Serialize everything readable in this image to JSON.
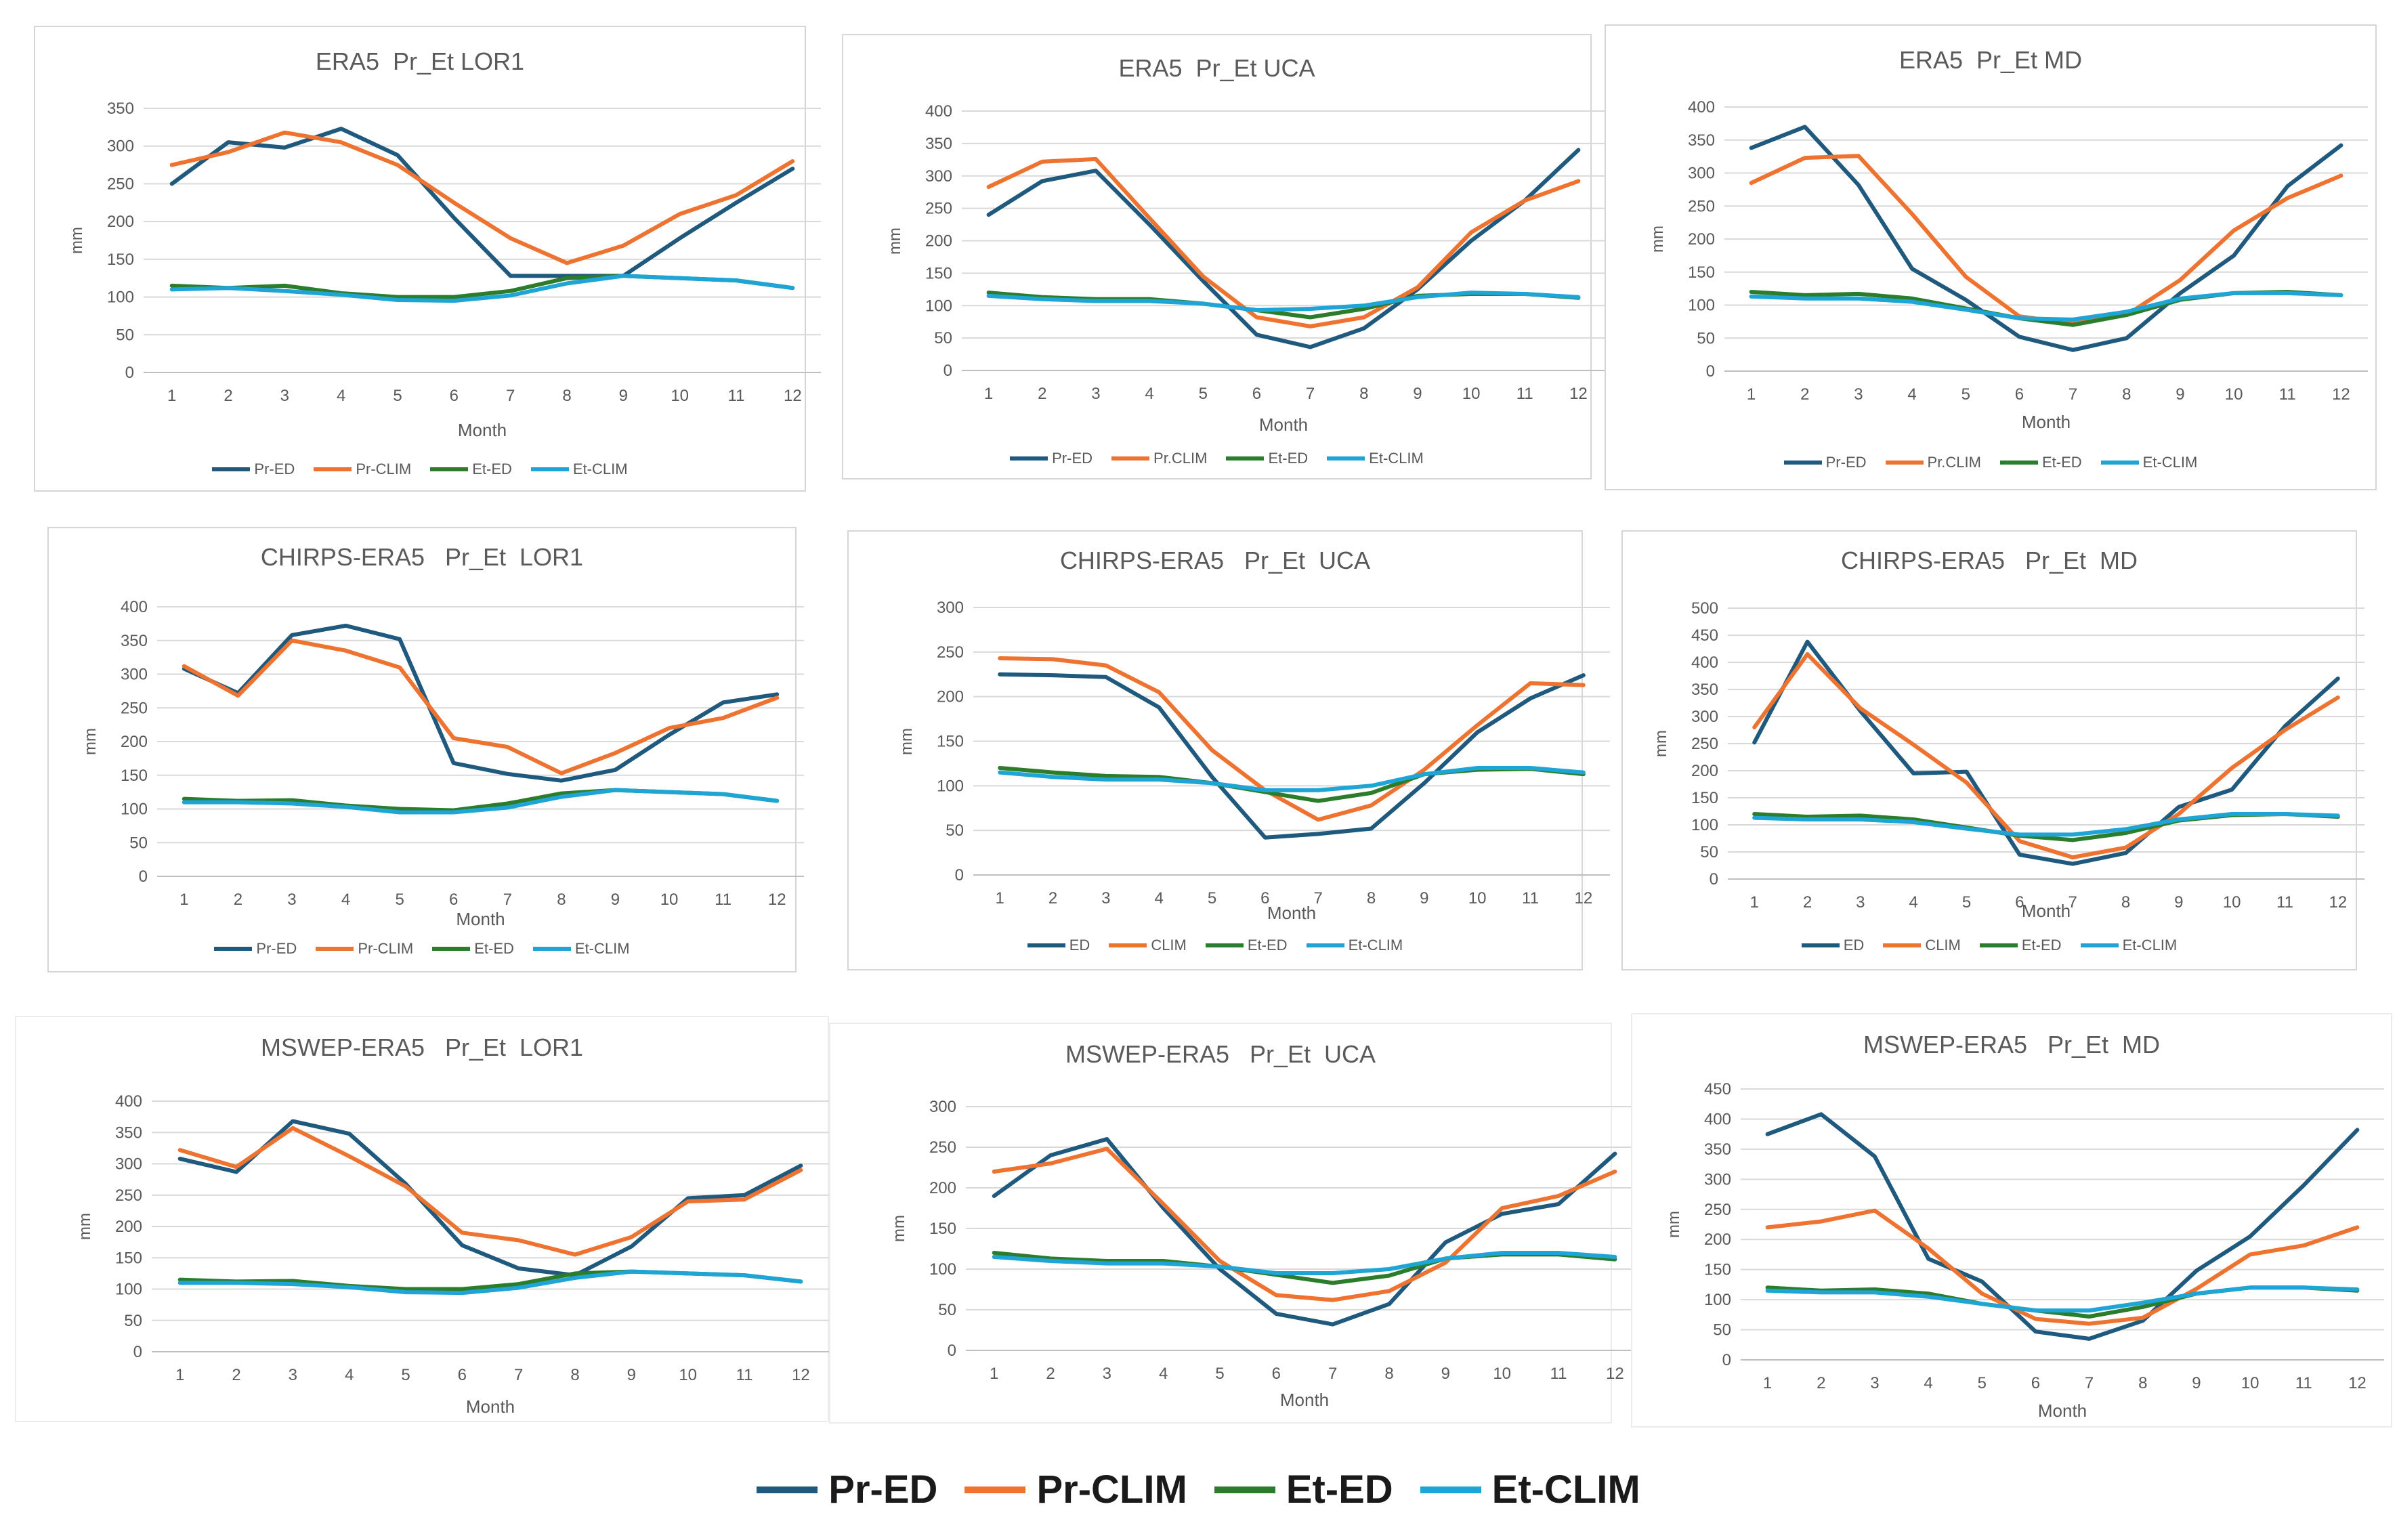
{
  "colors": {
    "pr_ed": "#1f5a7e",
    "pr_clim": "#ee7330",
    "et_ed": "#2b7d2b",
    "et_clim": "#1ea5d6"
  },
  "bottom_legend": [
    "Pr-ED",
    "Pr-CLIM",
    "Et-ED",
    "Et-CLIM"
  ],
  "chart_data": [
    {
      "type": "line",
      "title": "ERA5  Pr_Et LOR1",
      "xlabel": "Month",
      "ylabel": "mm",
      "categories": [
        1,
        2,
        3,
        4,
        5,
        6,
        7,
        8,
        9,
        10,
        11,
        12
      ],
      "ylim": [
        0,
        350
      ],
      "yticks": [
        0,
        50,
        100,
        150,
        200,
        250,
        300,
        350
      ],
      "legend": [
        "Pr-ED",
        "Pr-CLIM",
        "Et-ED",
        "Et-CLIM"
      ],
      "series": [
        {
          "name": "Pr-ED",
          "values": [
            250,
            305,
            298,
            323,
            288,
            205,
            128,
            128,
            128,
            178,
            225,
            270
          ]
        },
        {
          "name": "Pr-CLIM",
          "values": [
            275,
            292,
            318,
            305,
            275,
            225,
            178,
            145,
            168,
            210,
            235,
            280
          ]
        },
        {
          "name": "Et-ED",
          "values": [
            115,
            112,
            115,
            105,
            100,
            100,
            108,
            125,
            128,
            125,
            122,
            112
          ]
        },
        {
          "name": "Et-CLIM",
          "values": [
            110,
            112,
            108,
            103,
            96,
            95,
            102,
            118,
            128,
            125,
            122,
            112
          ]
        }
      ]
    },
    {
      "type": "line",
      "title": "ERA5  Pr_Et UCA",
      "xlabel": "Month",
      "ylabel": "mm",
      "categories": [
        1,
        2,
        3,
        4,
        5,
        6,
        7,
        8,
        9,
        10,
        11,
        12
      ],
      "ylim": [
        0,
        400
      ],
      "yticks": [
        0,
        50,
        100,
        150,
        200,
        250,
        300,
        350,
        400
      ],
      "legend": [
        "Pr-ED",
        "Pr.CLIM",
        "Et-ED",
        "Et-CLIM"
      ],
      "series": [
        {
          "name": "Pr-ED",
          "values": [
            240,
            292,
            308,
            225,
            138,
            55,
            36,
            65,
            125,
            200,
            262,
            340
          ]
        },
        {
          "name": "Pr-CLIM",
          "values": [
            283,
            322,
            326,
            235,
            145,
            82,
            68,
            82,
            128,
            213,
            262,
            292
          ]
        },
        {
          "name": "Et-ED",
          "values": [
            120,
            113,
            110,
            110,
            103,
            93,
            82,
            95,
            115,
            118,
            118,
            112
          ]
        },
        {
          "name": "Et-CLIM",
          "values": [
            115,
            110,
            107,
            107,
            103,
            93,
            95,
            100,
            113,
            120,
            118,
            113
          ]
        }
      ]
    },
    {
      "type": "line",
      "title": "ERA5  Pr_Et MD",
      "xlabel": "Month",
      "ylabel": "mm",
      "categories": [
        1,
        2,
        3,
        4,
        5,
        6,
        7,
        8,
        9,
        10,
        11,
        12
      ],
      "ylim": [
        0,
        400
      ],
      "yticks": [
        0,
        50,
        100,
        150,
        200,
        250,
        300,
        350,
        400
      ],
      "legend": [
        "Pr-ED",
        "Pr.CLIM",
        "Et-ED",
        "Et-CLIM"
      ],
      "series": [
        {
          "name": "Pr-ED",
          "values": [
            338,
            370,
            282,
            155,
            108,
            52,
            32,
            50,
            118,
            175,
            280,
            342
          ]
        },
        {
          "name": "Pr-CLIM",
          "values": [
            285,
            323,
            326,
            238,
            143,
            83,
            72,
            85,
            138,
            213,
            262,
            296
          ]
        },
        {
          "name": "Et-ED",
          "values": [
            120,
            115,
            117,
            110,
            95,
            80,
            70,
            85,
            108,
            118,
            120,
            115
          ]
        },
        {
          "name": "Et-CLIM",
          "values": [
            113,
            110,
            110,
            105,
            93,
            80,
            78,
            90,
            110,
            118,
            118,
            115
          ]
        }
      ]
    },
    {
      "type": "line",
      "title": "CHIRPS-ERA5   Pr_Et  LOR1",
      "xlabel": "Month",
      "ylabel": "mm",
      "categories": [
        1,
        2,
        3,
        4,
        5,
        6,
        7,
        8,
        9,
        10,
        11,
        12
      ],
      "ylim": [
        0,
        400
      ],
      "yticks": [
        0,
        50,
        100,
        150,
        200,
        250,
        300,
        350,
        400
      ],
      "legend": [
        "Pr-ED",
        "Pr-CLIM",
        "Et-ED",
        "Et-CLIM"
      ],
      "series": [
        {
          "name": "Pr-ED",
          "values": [
            308,
            272,
            358,
            372,
            352,
            168,
            152,
            142,
            158,
            210,
            258,
            270
          ]
        },
        {
          "name": "Pr-CLIM",
          "values": [
            312,
            268,
            350,
            335,
            310,
            205,
            192,
            153,
            183,
            220,
            235,
            265
          ]
        },
        {
          "name": "Et-ED",
          "values": [
            115,
            112,
            113,
            105,
            100,
            98,
            108,
            123,
            128,
            125,
            122,
            112
          ]
        },
        {
          "name": "Et-CLIM",
          "values": [
            110,
            110,
            108,
            103,
            95,
            95,
            102,
            118,
            128,
            125,
            122,
            112
          ]
        }
      ]
    },
    {
      "type": "line",
      "title": "CHIRPS-ERA5   Pr_Et  UCA",
      "xlabel": "Month",
      "ylabel": "mm",
      "categories": [
        1,
        2,
        3,
        4,
        5,
        6,
        7,
        8,
        9,
        10,
        11,
        12
      ],
      "ylim": [
        0,
        300
      ],
      "yticks": [
        0,
        50,
        100,
        150,
        200,
        250,
        300
      ],
      "legend": [
        "ED",
        "CLIM",
        "Et-ED",
        "Et-CLIM"
      ],
      "series": [
        {
          "name": "ED",
          "values": [
            225,
            224,
            222,
            188,
            110,
            42,
            46,
            52,
            103,
            160,
            198,
            224
          ]
        },
        {
          "name": "CLIM",
          "values": [
            243,
            242,
            235,
            205,
            140,
            95,
            62,
            78,
            118,
            168,
            215,
            213
          ]
        },
        {
          "name": "Et-ED",
          "values": [
            120,
            115,
            111,
            110,
            103,
            93,
            83,
            92,
            113,
            118,
            119,
            113
          ]
        },
        {
          "name": "Et-CLIM",
          "values": [
            115,
            110,
            107,
            107,
            103,
            95,
            95,
            100,
            113,
            120,
            120,
            115
          ]
        }
      ]
    },
    {
      "type": "line",
      "title": "CHIRPS-ERA5   Pr_Et  MD",
      "xlabel": "Month",
      "ylabel": "mm",
      "categories": [
        1,
        2,
        3,
        4,
        5,
        6,
        7,
        8,
        9,
        10,
        11,
        12
      ],
      "ylim": [
        0,
        500
      ],
      "yticks": [
        0,
        50,
        100,
        150,
        200,
        250,
        300,
        350,
        400,
        450,
        500
      ],
      "legend": [
        "ED",
        "CLIM",
        "Et-ED",
        "Et-CLIM"
      ],
      "series": [
        {
          "name": "ED",
          "values": [
            252,
            438,
            310,
            195,
            198,
            45,
            28,
            48,
            133,
            165,
            282,
            370
          ]
        },
        {
          "name": "CLIM",
          "values": [
            280,
            415,
            315,
            248,
            178,
            70,
            40,
            58,
            120,
            205,
            275,
            335
          ]
        },
        {
          "name": "Et-ED",
          "values": [
            120,
            115,
            117,
            110,
            95,
            80,
            72,
            85,
            108,
            118,
            120,
            115
          ]
        },
        {
          "name": "Et-CLIM",
          "values": [
            113,
            110,
            110,
            105,
            93,
            82,
            82,
            92,
            110,
            120,
            120,
            117
          ]
        }
      ]
    },
    {
      "type": "line",
      "title": "MSWEP-ERA5   Pr_Et  LOR1",
      "xlabel": "Month",
      "ylabel": "mm",
      "categories": [
        1,
        2,
        3,
        4,
        5,
        6,
        7,
        8,
        9,
        10,
        11,
        12
      ],
      "ylim": [
        0,
        400
      ],
      "yticks": [
        0,
        50,
        100,
        150,
        200,
        250,
        300,
        350,
        400
      ],
      "legend": [],
      "series": [
        {
          "name": "Pr-ED",
          "values": [
            308,
            287,
            368,
            348,
            268,
            170,
            133,
            122,
            168,
            245,
            250,
            297
          ]
        },
        {
          "name": "Pr-CLIM",
          "values": [
            322,
            295,
            357,
            312,
            264,
            190,
            178,
            155,
            183,
            240,
            243,
            290
          ]
        },
        {
          "name": "Et-ED",
          "values": [
            115,
            112,
            113,
            105,
            100,
            100,
            108,
            125,
            128,
            125,
            122,
            112
          ]
        },
        {
          "name": "Et-CLIM",
          "values": [
            110,
            110,
            108,
            103,
            95,
            94,
            102,
            118,
            128,
            125,
            122,
            112
          ]
        }
      ]
    },
    {
      "type": "line",
      "title": "MSWEP-ERA5   Pr_Et  UCA",
      "xlabel": "Month",
      "ylabel": "mm",
      "categories": [
        1,
        2,
        3,
        4,
        5,
        6,
        7,
        8,
        9,
        10,
        11,
        12
      ],
      "ylim": [
        0,
        300
      ],
      "yticks": [
        0,
        50,
        100,
        150,
        200,
        250,
        300
      ],
      "legend": [],
      "series": [
        {
          "name": "Pr-ED",
          "values": [
            190,
            240,
            260,
            175,
            100,
            45,
            32,
            57,
            133,
            168,
            180,
            242
          ]
        },
        {
          "name": "Pr-CLIM",
          "values": [
            220,
            230,
            248,
            180,
            110,
            68,
            62,
            73,
            108,
            175,
            190,
            220
          ]
        },
        {
          "name": "Et-ED",
          "values": [
            120,
            113,
            110,
            110,
            103,
            93,
            83,
            92,
            113,
            118,
            118,
            112
          ]
        },
        {
          "name": "Et-CLIM",
          "values": [
            115,
            110,
            107,
            107,
            103,
            95,
            95,
            100,
            113,
            120,
            120,
            115
          ]
        }
      ]
    },
    {
      "type": "line",
      "title": "MSWEP-ERA5   Pr_Et  MD",
      "xlabel": "Month",
      "ylabel": "mm",
      "categories": [
        1,
        2,
        3,
        4,
        5,
        6,
        7,
        8,
        9,
        10,
        11,
        12
      ],
      "ylim": [
        0,
        450
      ],
      "yticks": [
        0,
        50,
        100,
        150,
        200,
        250,
        300,
        350,
        400,
        450
      ],
      "legend": [],
      "series": [
        {
          "name": "Pr-ED",
          "values": [
            375,
            408,
            338,
            168,
            130,
            47,
            35,
            65,
            148,
            205,
            290,
            382
          ]
        },
        {
          "name": "Pr-CLIM",
          "values": [
            220,
            230,
            248,
            185,
            110,
            68,
            60,
            70,
            118,
            175,
            190,
            220
          ]
        },
        {
          "name": "Et-ED",
          "values": [
            120,
            115,
            117,
            110,
            93,
            82,
            72,
            88,
            110,
            120,
            120,
            115
          ]
        },
        {
          "name": "Et-CLIM",
          "values": [
            115,
            112,
            112,
            105,
            93,
            82,
            82,
            95,
            110,
            120,
            120,
            117
          ]
        }
      ]
    }
  ]
}
